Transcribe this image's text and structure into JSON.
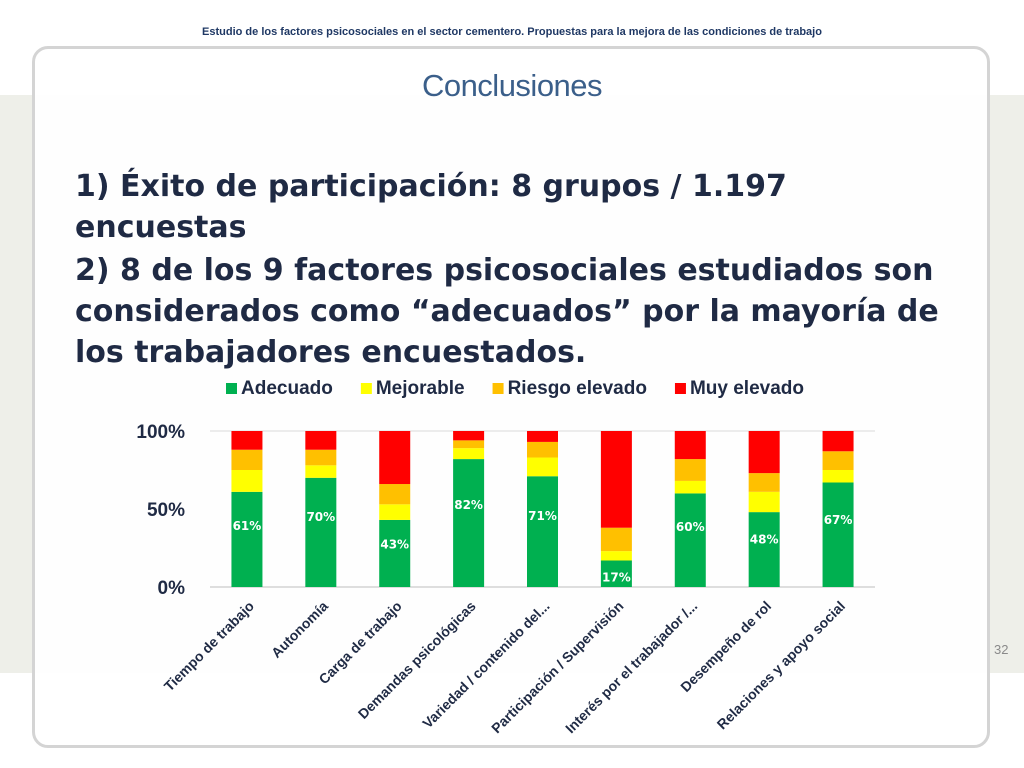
{
  "header": {
    "running_title": "Estudio de los factores psicosociales en el sector cementero. Propuestas para la mejora de las condiciones de trabajo"
  },
  "slide": {
    "title": "Conclusiones",
    "point1": "1) Éxito de participación: 8 grupos / 1.197 encuestas",
    "point2": "2) 8 de los 9 factores psicosociales estudiados son considerados como “adecuados” por la mayoría de los trabajadores encuestados.",
    "page_number": "32"
  },
  "chart_data": {
    "type": "bar",
    "stacked": "percent",
    "categories": [
      "Tiempo de trabajo",
      "Autonomía",
      "Carga de trabajo",
      "Demandas psicológicas",
      "Variedad / contenido del...",
      "Participación / Supervisión",
      "Interés por el trabajador /...",
      "Desempeño de rol",
      "Relaciones y apoyo social"
    ],
    "series": [
      {
        "name": "Adecuado",
        "color": "#00b050",
        "values": [
          61,
          70,
          43,
          82,
          71,
          17,
          60,
          48,
          67
        ]
      },
      {
        "name": "Mejorable",
        "color": "#ffff00",
        "values": [
          14,
          8,
          10,
          7,
          12,
          6,
          8,
          13,
          8
        ]
      },
      {
        "name": "Riesgo elevado",
        "color": "#ffc000",
        "values": [
          13,
          10,
          13,
          5,
          10,
          15,
          14,
          12,
          12
        ]
      },
      {
        "name": "Muy elevado",
        "color": "#ff0000",
        "values": [
          12,
          12,
          34,
          6,
          7,
          62,
          18,
          27,
          13
        ]
      }
    ],
    "data_labels": [
      "61%",
      "70%",
      "43%",
      "82%",
      "71%",
      "17%",
      "60%",
      "48%",
      "67%"
    ],
    "y_ticks": [
      "0%",
      "50%",
      "100%"
    ],
    "ylim": [
      0,
      100
    ],
    "legend_position": "top",
    "grid": false
  }
}
